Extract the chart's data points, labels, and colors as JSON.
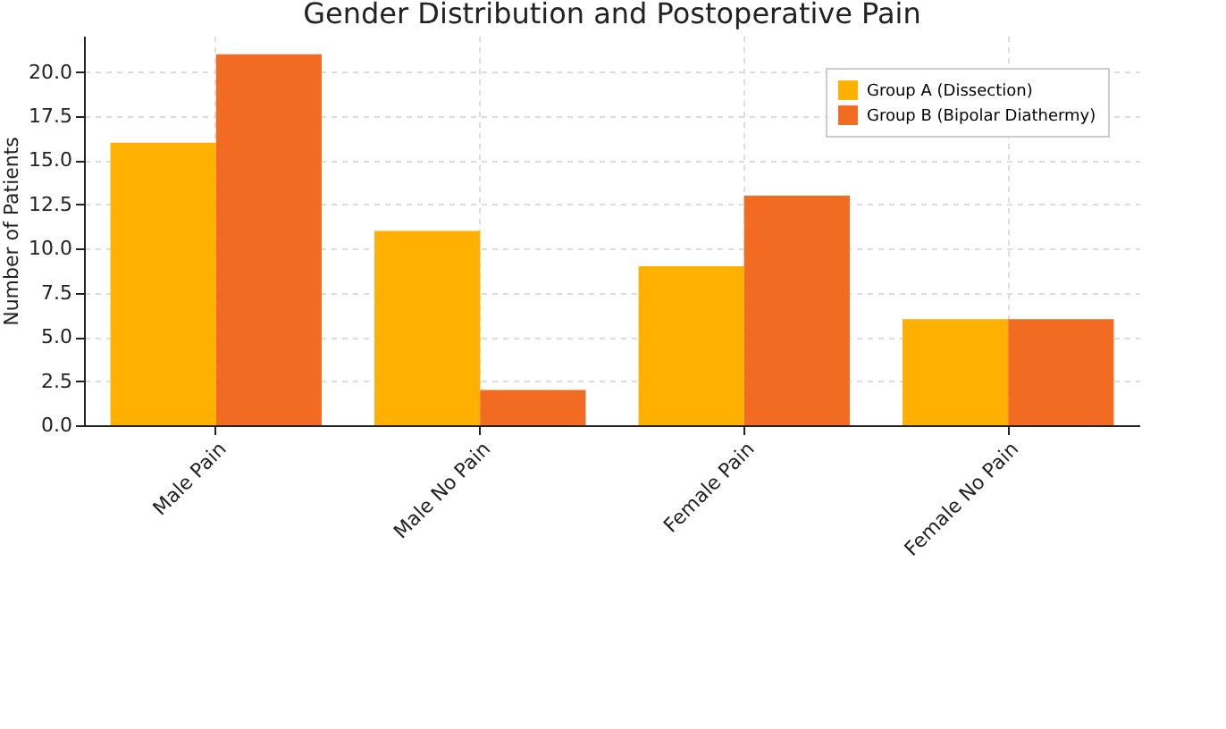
{
  "chart_data": {
    "type": "bar",
    "title": "Gender Distribution and Postoperative Pain",
    "ylabel": "Number of Patients",
    "categories": [
      "Male Pain",
      "Male No Pain",
      "Female Pain",
      "Female No Pain"
    ],
    "series": [
      {
        "name": "Group A (Dissection)",
        "color": "#ffb000",
        "values": [
          16,
          11,
          9,
          6
        ]
      },
      {
        "name": "Group B (Bipolar Diathermy)",
        "color": "#f26b22",
        "values": [
          21,
          2,
          13,
          6
        ]
      }
    ],
    "ylim": [
      0,
      22.05
    ],
    "yticks": [
      {
        "value": 0,
        "label": "0.0"
      },
      {
        "value": 2.5,
        "label": "2.5"
      },
      {
        "value": 5,
        "label": "5.0"
      },
      {
        "value": 7.5,
        "label": "7.5"
      },
      {
        "value": 10,
        "label": "10.0"
      },
      {
        "value": 12.5,
        "label": "12.5"
      },
      {
        "value": 15,
        "label": "15.0"
      },
      {
        "value": 17.5,
        "label": "17.5"
      },
      {
        "value": 20,
        "label": "20.0"
      }
    ],
    "grid": true,
    "legend": "top right"
  }
}
